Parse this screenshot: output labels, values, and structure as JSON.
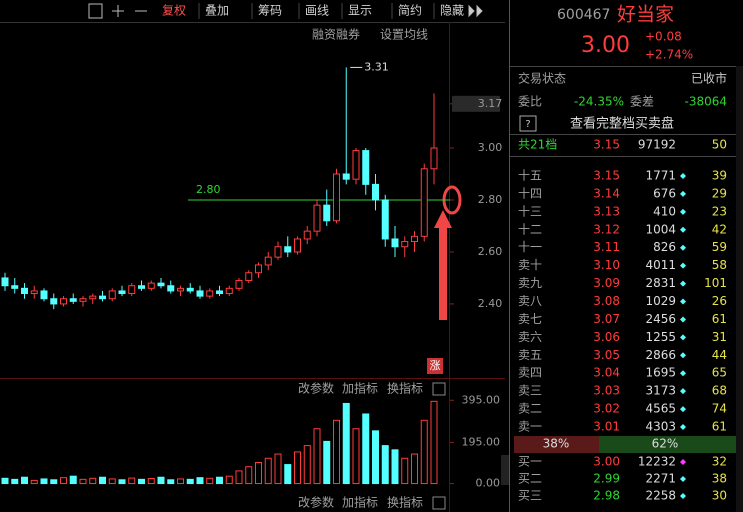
{
  "toolbar": {
    "buttons": [
      "复权",
      "叠加",
      "筹码",
      "画线",
      "显示",
      "简约",
      "隐藏"
    ]
  },
  "chart_controls": [
    "融资融券",
    "设置均线"
  ],
  "limit_badge": "涨",
  "indicator_buttons": [
    "改参数",
    "加指标",
    "换指标"
  ],
  "chart_data": {
    "type": "candlestick",
    "open": [
      2.5,
      2.47,
      2.46,
      2.44,
      2.45,
      2.42,
      2.4,
      2.42,
      2.41,
      2.42,
      2.43,
      2.42,
      2.45,
      2.44,
      2.47,
      2.46,
      2.48,
      2.47,
      2.45,
      2.46,
      2.45,
      2.43,
      2.45,
      2.44,
      2.46,
      2.49,
      2.52,
      2.55,
      2.58,
      2.62,
      2.6,
      2.65,
      2.68,
      2.78,
      2.72,
      2.9,
      2.88,
      2.99,
      2.86,
      2.8,
      2.65,
      2.62,
      2.64,
      2.66,
      2.92
    ],
    "high": [
      2.52,
      2.5,
      2.48,
      2.47,
      2.46,
      2.44,
      2.43,
      2.44,
      2.43,
      2.44,
      2.45,
      2.46,
      2.47,
      2.48,
      2.49,
      2.49,
      2.5,
      2.49,
      2.47,
      2.48,
      2.47,
      2.46,
      2.47,
      2.47,
      2.5,
      2.53,
      2.56,
      2.6,
      2.64,
      2.66,
      2.66,
      2.7,
      2.8,
      2.84,
      2.92,
      3.31,
      3.0,
      3.0,
      2.9,
      2.82,
      2.7,
      2.66,
      2.68,
      2.94,
      3.21
    ],
    "low": [
      2.45,
      2.44,
      2.42,
      2.42,
      2.41,
      2.38,
      2.39,
      2.4,
      2.39,
      2.4,
      2.41,
      2.41,
      2.43,
      2.43,
      2.45,
      2.45,
      2.46,
      2.44,
      2.43,
      2.44,
      2.42,
      2.42,
      2.43,
      2.43,
      2.45,
      2.48,
      2.5,
      2.53,
      2.57,
      2.58,
      2.59,
      2.63,
      2.66,
      2.7,
      2.71,
      2.86,
      2.86,
      2.82,
      2.76,
      2.62,
      2.58,
      2.58,
      2.6,
      2.64,
      2.86
    ],
    "close": [
      2.47,
      2.46,
      2.44,
      2.45,
      2.42,
      2.4,
      2.42,
      2.41,
      2.42,
      2.43,
      2.42,
      2.45,
      2.44,
      2.47,
      2.46,
      2.48,
      2.47,
      2.45,
      2.46,
      2.45,
      2.43,
      2.45,
      2.44,
      2.46,
      2.49,
      2.52,
      2.55,
      2.58,
      2.62,
      2.6,
      2.65,
      2.68,
      2.78,
      2.72,
      2.9,
      2.88,
      2.99,
      2.86,
      2.8,
      2.65,
      2.62,
      2.64,
      2.66,
      2.92,
      3.0
    ],
    "up_color": "#ff3c3c",
    "down_color": "#54ffff",
    "ylim": [
      2.115,
      3.454
    ],
    "yticks": [
      {
        "value": 3.17,
        "label": "3.17"
      },
      {
        "value": 3.0,
        "label": "3.00"
      },
      {
        "value": 2.8,
        "label": "2.80"
      },
      {
        "value": 2.6,
        "label": "2.60"
      },
      {
        "value": 2.4,
        "label": "2.40"
      }
    ],
    "high_marker": {
      "value": 3.31,
      "label": "3.31"
    },
    "price_line": {
      "value": 2.8,
      "label": "2.80",
      "color": "#2fd62f"
    },
    "volume": {
      "values": [
        25,
        20,
        30,
        15,
        22,
        18,
        28,
        35,
        20,
        25,
        30,
        22,
        18,
        26,
        20,
        24,
        30,
        18,
        22,
        20,
        28,
        25,
        30,
        35,
        60,
        80,
        100,
        120,
        140,
        90,
        150,
        180,
        260,
        200,
        300,
        380,
        260,
        330,
        250,
        180,
        160,
        120,
        140,
        300,
        390
      ],
      "ylim": [
        -40,
        420
      ],
      "yticks": [
        {
          "value": 395,
          "label": "395.00"
        },
        {
          "value": 195,
          "label": "195.00"
        },
        {
          "value": 0,
          "label": "0.00"
        }
      ]
    }
  },
  "quote": {
    "code": "600467",
    "name": "好当家",
    "price": "3.00",
    "change": "+0.08",
    "change_pct": "+2.74%"
  },
  "status": {
    "label": "交易状态",
    "value": "已收市"
  },
  "ratio": {
    "label": "委比",
    "value": "-24.35%",
    "diff_label": "委差",
    "diff_value": "-38064"
  },
  "full_book": "查看完整档买卖盘",
  "summary": [
    "共21档",
    "3.15",
    "97192",
    "50"
  ],
  "sell": [
    [
      "十五",
      "3.15",
      "1771",
      "39"
    ],
    [
      "十四",
      "3.14",
      "676",
      "29"
    ],
    [
      "十三",
      "3.13",
      "410",
      "23"
    ],
    [
      "十二",
      "3.12",
      "1004",
      "42"
    ],
    [
      "十一",
      "3.11",
      "826",
      "59"
    ],
    [
      "卖十",
      "3.10",
      "4011",
      "58"
    ],
    [
      "卖九",
      "3.09",
      "2831",
      "101"
    ],
    [
      "卖八",
      "3.08",
      "1029",
      "26"
    ],
    [
      "卖七",
      "3.07",
      "2456",
      "61"
    ],
    [
      "卖六",
      "3.06",
      "1255",
      "31"
    ],
    [
      "卖五",
      "3.05",
      "2866",
      "44"
    ],
    [
      "卖四",
      "3.04",
      "1695",
      "65"
    ],
    [
      "卖三",
      "3.03",
      "3173",
      "68"
    ],
    [
      "卖二",
      "3.02",
      "4565",
      "74"
    ],
    [
      "卖一",
      "3.01",
      "4303",
      "61"
    ]
  ],
  "split": [
    "38%",
    "62%"
  ],
  "buy": [
    [
      "买一",
      "3.00",
      "12232",
      "32"
    ],
    [
      "买二",
      "2.99",
      "2271",
      "38"
    ],
    [
      "买三",
      "2.98",
      "2258",
      "30"
    ]
  ],
  "buy_price_colors": [
    "#ff3c3c",
    "#2fd62f",
    "#2fd62f"
  ]
}
